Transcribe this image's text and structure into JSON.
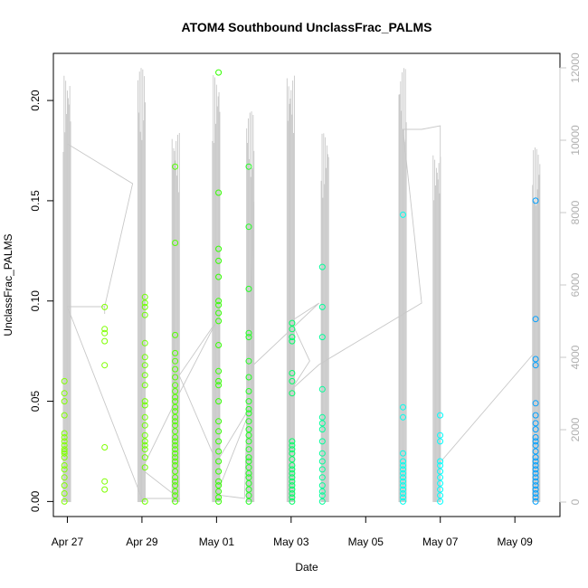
{
  "chart_data": {
    "type": "scatter",
    "title": "ATOM4 Southbound UnclassFrac_PALMS",
    "xlabel": "Date",
    "ylabel": "UnclassFrac_PALMS",
    "x_ticks": [
      "Apr 27",
      "Apr 29",
      "May 01",
      "May 03",
      "May 05",
      "May 07",
      "May 09"
    ],
    "x_range": [
      "2018-04-26 15:00",
      "2018-05-10 05:00"
    ],
    "ylim": [
      -0.0075,
      0.2235
    ],
    "y_ticks": [
      "0.00",
      "0.05",
      "0.10",
      "0.15",
      "0.20"
    ],
    "y2lim": [
      -400,
      12400
    ],
    "y2_ticks": [
      "0",
      "2000",
      "4000",
      "6000",
      "8000",
      "10000",
      "12000"
    ],
    "y2_line_color": "#c8c8c8",
    "grid": false,
    "flight_days": [
      {
        "t": "2018-04-27 00:00",
        "color": "#80ff00",
        "values": [
          0.06,
          0.054,
          0.05,
          0.043,
          0.034,
          0.032,
          0.03,
          0.028,
          0.026,
          0.025,
          0.024,
          0.022,
          0.018,
          0.016,
          0.012,
          0.008,
          0.004,
          0.0
        ]
      },
      {
        "t": "2018-04-28 00:00",
        "color": "#7fff00",
        "values": [
          0.097,
          0.086,
          0.084,
          0.08,
          0.068,
          0.027,
          0.01,
          0.006
        ]
      },
      {
        "t": "2018-04-29 00:00",
        "color": "#6eff00",
        "values": [
          0.102,
          0.099,
          0.097,
          0.093,
          0.079,
          0.072,
          0.068,
          0.063,
          0.058,
          0.05,
          0.048,
          0.042,
          0.038,
          0.033,
          0.03,
          0.028,
          0.026,
          0.022,
          0.017,
          0.0
        ]
      },
      {
        "t": "2018-04-29 22:00",
        "color": "#55ff00",
        "values": [
          0.167,
          0.129,
          0.083,
          0.074,
          0.07,
          0.066,
          0.062,
          0.058,
          0.055,
          0.052,
          0.05,
          0.047,
          0.045,
          0.042,
          0.04,
          0.038,
          0.035,
          0.032,
          0.03,
          0.028,
          0.026,
          0.024,
          0.022,
          0.02,
          0.018,
          0.015,
          0.012,
          0.01,
          0.008,
          0.005,
          0.003,
          0.0
        ]
      },
      {
        "t": "2018-05-01 00:00",
        "color": "#33ff00",
        "values": [
          0.214,
          0.154,
          0.126,
          0.12,
          0.112,
          0.1,
          0.098,
          0.094,
          0.09,
          0.078,
          0.065,
          0.06,
          0.058,
          0.05,
          0.04,
          0.035,
          0.03,
          0.025,
          0.02,
          0.015,
          0.01,
          0.008,
          0.005,
          0.002,
          0.0
        ]
      },
      {
        "t": "2018-05-01 22:00",
        "color": "#22ff22",
        "values": [
          0.167,
          0.137,
          0.106,
          0.084,
          0.082,
          0.07,
          0.062,
          0.055,
          0.05,
          0.046,
          0.044,
          0.04,
          0.036,
          0.033,
          0.03,
          0.026,
          0.022,
          0.02,
          0.017,
          0.014,
          0.012,
          0.009,
          0.006,
          0.003,
          0.0
        ]
      },
      {
        "t": "2018-05-03 00:00",
        "color": "#00ff66",
        "values": [
          0.089,
          0.086,
          0.082,
          0.08,
          0.064,
          0.06,
          0.054,
          0.03,
          0.028,
          0.026,
          0.024,
          0.021,
          0.018,
          0.016,
          0.014,
          0.012,
          0.01,
          0.008,
          0.006,
          0.004,
          0.002,
          0.0
        ]
      },
      {
        "t": "2018-05-03 22:00",
        "color": "#00ff99",
        "values": [
          0.117,
          0.097,
          0.082,
          0.056,
          0.042,
          0.039,
          0.036,
          0.03,
          0.024,
          0.02,
          0.016,
          0.012,
          0.008,
          0.005,
          0.003,
          0.0
        ]
      },
      {
        "t": "2018-05-06 00:00",
        "color": "#00ffee",
        "values": [
          0.143,
          0.047,
          0.042,
          0.024,
          0.02,
          0.018,
          0.016,
          0.014,
          0.012,
          0.01,
          0.008,
          0.006,
          0.004,
          0.002,
          0.0
        ]
      },
      {
        "t": "2018-05-06 22:00",
        "color": "#00ffff",
        "values": [
          0.043,
          0.033,
          0.03,
          0.02,
          0.018,
          0.015,
          0.012,
          0.009,
          0.006,
          0.003,
          0.0
        ]
      },
      {
        "t": "2018-05-09 14:00",
        "color": "#00a0ff",
        "values": [
          0.15,
          0.091,
          0.071,
          0.068,
          0.049,
          0.043,
          0.039,
          0.036,
          0.032,
          0.03,
          0.028,
          0.025,
          0.022,
          0.02,
          0.018,
          0.016,
          0.014,
          0.012,
          0.01,
          0.008,
          0.006,
          0.004,
          0.002,
          0.0
        ]
      }
    ],
    "altitude_bursts": [
      {
        "t": "2018-04-27 00:00",
        "peak": 11800
      },
      {
        "t": "2018-04-29 00:00",
        "peak": 12000
      },
      {
        "t": "2018-04-29 22:00",
        "peak": 10200
      },
      {
        "t": "2018-05-01 00:00",
        "peak": 11800
      },
      {
        "t": "2018-05-01 22:00",
        "peak": 10800
      },
      {
        "t": "2018-05-03 00:00",
        "peak": 11800
      },
      {
        "t": "2018-05-03 22:00",
        "peak": 10200
      },
      {
        "t": "2018-05-06 00:00",
        "peak": 12000
      },
      {
        "t": "2018-05-06 22:00",
        "peak": 9600
      },
      {
        "t": "2018-05-09 14:00",
        "peak": 9800
      }
    ],
    "altitude_transit_path": [
      {
        "t": "2018-04-27 00:00",
        "alt": 9900
      },
      {
        "t": "2018-04-28 18:00",
        "alt": 8800
      },
      {
        "t": "2018-04-28 00:00",
        "alt": 5400
      },
      {
        "t": "2018-04-28 00:00",
        "alt": 5200
      },
      {
        "t": "2018-04-28 00:00",
        "alt": 5400
      },
      {
        "t": "2018-04-27 00:00",
        "alt": 5400
      },
      {
        "t": "2018-04-29 00:00",
        "alt": 100
      },
      {
        "t": "2018-04-30 00:00",
        "alt": 100
      },
      {
        "t": "2018-04-29 00:00",
        "alt": 900
      },
      {
        "t": "2018-04-30 00:00",
        "alt": 3000
      },
      {
        "t": "2018-05-01 00:00",
        "alt": 5000
      },
      {
        "t": "2018-04-30 00:00",
        "alt": 3500
      },
      {
        "t": "2018-05-01 00:00",
        "alt": 1100
      },
      {
        "t": "2018-05-02 00:00",
        "alt": 2800
      },
      {
        "t": "2018-05-01 00:00",
        "alt": 200
      },
      {
        "t": "2018-05-01 18:00",
        "alt": 100
      },
      {
        "t": "2018-05-02 00:00",
        "alt": 8300
      },
      {
        "t": "2018-05-02 00:00",
        "alt": 1200
      },
      {
        "t": "2018-05-02 00:00",
        "alt": 3800
      },
      {
        "t": "2018-05-03 18:00",
        "alt": 5500
      },
      {
        "t": "2018-05-03 00:00",
        "alt": 5000
      },
      {
        "t": "2018-05-03 12:00",
        "alt": 3900
      },
      {
        "t": "2018-05-03 00:00",
        "alt": 3100
      },
      {
        "t": "2018-05-03 18:00",
        "alt": 3800
      },
      {
        "t": "2018-05-06 12:00",
        "alt": 5500
      },
      {
        "t": "2018-05-06 00:00",
        "alt": 10300
      },
      {
        "t": "2018-05-06 12:00",
        "alt": 10300
      },
      {
        "t": "2018-05-06 12:00",
        "alt": 10300
      },
      {
        "t": "2018-05-07 00:00",
        "alt": 10400
      },
      {
        "t": "2018-05-07 00:00",
        "alt": 1100
      },
      {
        "t": "2018-05-09 12:00",
        "alt": 4100
      }
    ]
  }
}
